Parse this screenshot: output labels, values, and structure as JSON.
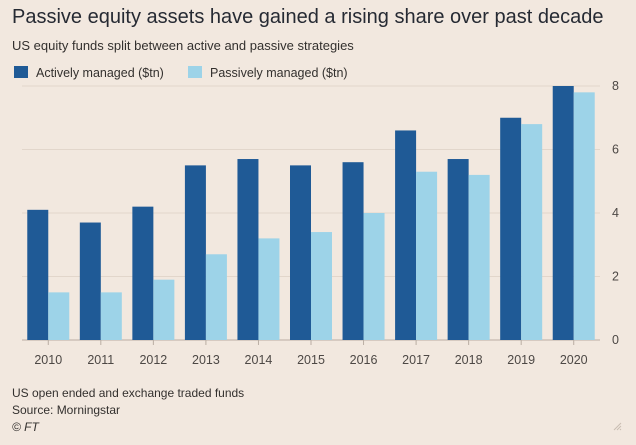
{
  "title": "Passive equity assets have gained a rising share over past decade",
  "subtitle": "US equity funds split between active and passive strategies",
  "footer": {
    "note": "US open ended and exchange traded funds",
    "source": "Source: Morningstar",
    "credit": "© FT"
  },
  "colors": {
    "background": "#f2e8df",
    "active": "#1f5a96",
    "passive": "#9dd3e8",
    "grid": "#e2d6cb"
  },
  "chart_data": {
    "type": "bar",
    "title": "Passive equity assets have gained a rising share over past decade",
    "subtitle": "US equity funds split between active and passive strategies",
    "xlabel": "",
    "ylabel": "",
    "categories": [
      "2010",
      "2011",
      "2012",
      "2013",
      "2014",
      "2015",
      "2016",
      "2017",
      "2018",
      "2019",
      "2020"
    ],
    "series": [
      {
        "name": "Actively managed ($tn)",
        "color": "#1f5a96",
        "values": [
          4.1,
          3.7,
          4.2,
          5.5,
          5.7,
          5.5,
          5.6,
          6.6,
          5.7,
          7.0,
          8.0
        ]
      },
      {
        "name": "Passively managed ($tn)",
        "color": "#9dd3e8",
        "values": [
          1.5,
          1.5,
          1.9,
          2.7,
          3.2,
          3.4,
          4.0,
          5.3,
          5.2,
          6.8,
          7.8
        ]
      }
    ],
    "ylim": [
      0,
      8
    ],
    "yticks": [
      0,
      2,
      4,
      6,
      8
    ],
    "y_axis_side": "right",
    "grid": true,
    "legend_position": "top-left"
  }
}
